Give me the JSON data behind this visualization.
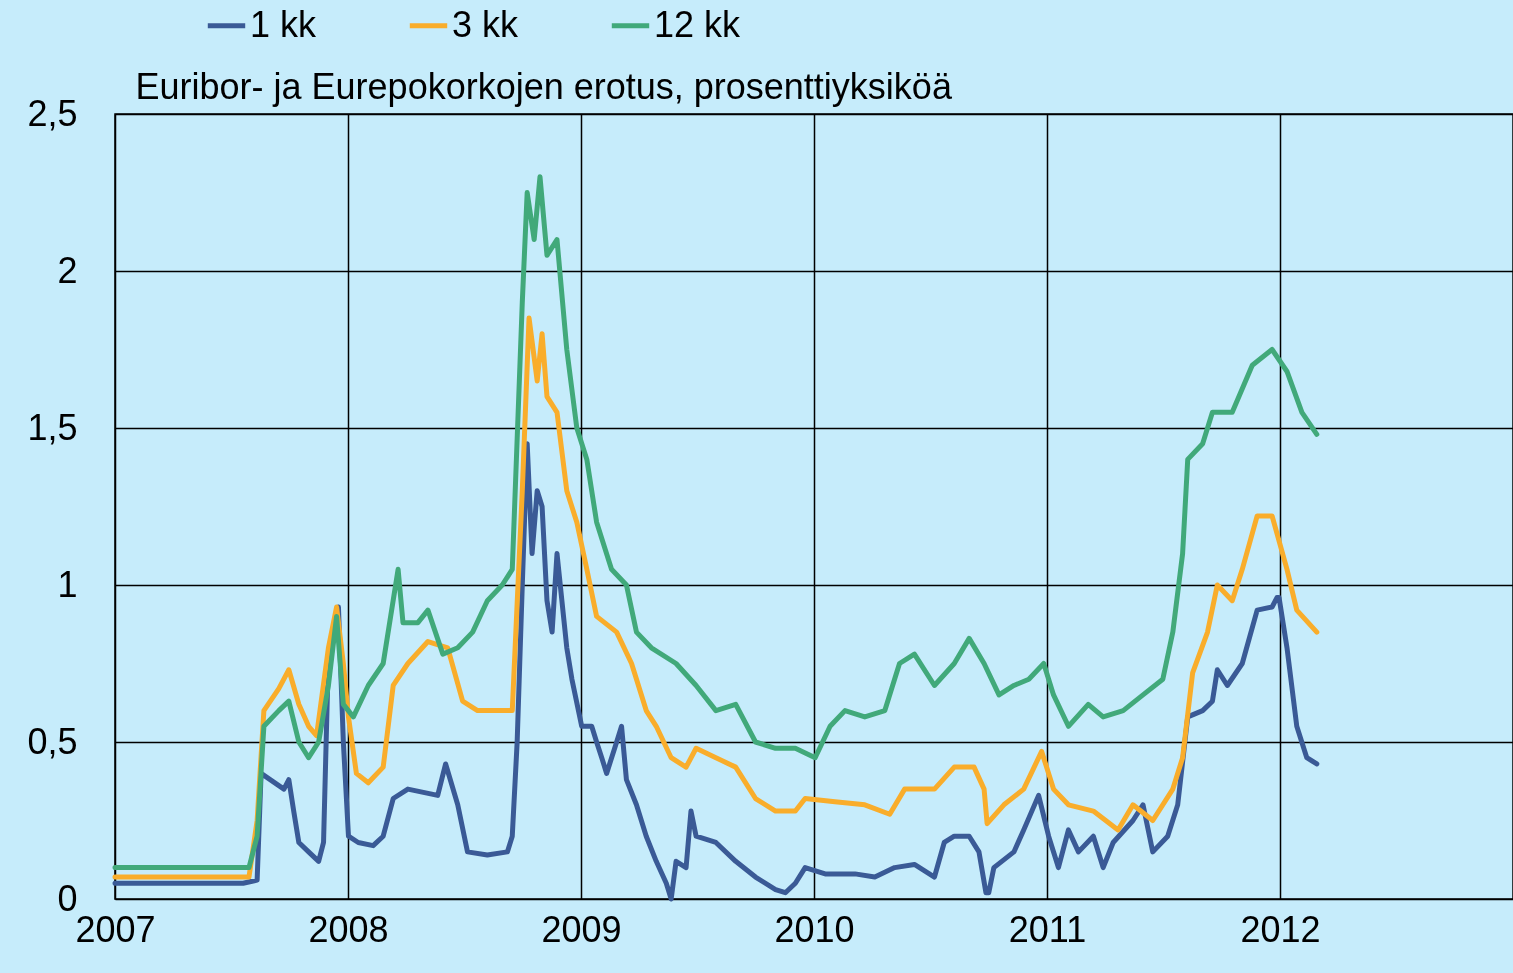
{
  "chart_data": {
    "type": "line",
    "ylabel": "Euribor- ja Eurepokorkojen erotus, prosenttiyksiköä",
    "xlim": [
      2007,
      2013
    ],
    "xticks": [
      2007,
      2008,
      2009,
      2010,
      2011,
      2012
    ],
    "ylim": [
      0,
      2.5
    ],
    "yticks": [
      0,
      {
        "value": 0.5,
        "label": "0,5"
      },
      1,
      {
        "value": 1.5,
        "label": "1,5"
      },
      2,
      {
        "value": 2.5,
        "label": "2,5"
      }
    ],
    "grid": true,
    "legend": "top left",
    "marker": "none",
    "line_style": "solid",
    "series": [
      {
        "name": "1 kk",
        "color": "#3a5a96",
        "x": [
          2007.0,
          2007.448,
          2007.55,
          2007.61,
          2007.627,
          2007.725,
          2007.746,
          2007.767,
          2007.789,
          2007.831,
          2007.874,
          2007.895,
          2007.916,
          2007.959,
          2007.98,
          2008.002,
          2008.044,
          2008.108,
          2008.151,
          2008.194,
          2008.257,
          2008.385,
          2008.419,
          2008.471,
          2008.513,
          2008.598,
          2008.684,
          2008.705,
          2008.726,
          2008.748,
          2008.769,
          2008.79,
          2008.812,
          2008.833,
          2008.854,
          2008.876,
          2008.897,
          2008.918,
          2008.939,
          2008.961,
          2009.003,
          2009.046,
          2009.067,
          2009.089,
          2009.11,
          2009.153,
          2009.174,
          2009.195,
          2009.238,
          2009.28,
          2009.323,
          2009.366,
          2009.387,
          2009.408,
          2009.451,
          2009.472,
          2009.494,
          2009.579,
          2009.664,
          2009.749,
          2009.835,
          2009.877,
          2009.92,
          2009.962,
          2010.048,
          2010.176,
          2010.261,
          2010.346,
          2010.431,
          2010.517,
          2010.559,
          2010.602,
          2010.666,
          2010.708,
          2010.738,
          2010.75,
          2010.772,
          2010.858,
          2010.9,
          2010.964,
          2011.007,
          2011.049,
          2011.092,
          2011.135,
          2011.199,
          2011.241,
          2011.284,
          2011.369,
          2011.412,
          2011.454,
          2011.518,
          2011.561,
          2011.604,
          2011.668,
          2011.71,
          2011.731,
          2011.774,
          2011.838,
          2011.902,
          2011.966,
          2011.987,
          2011.996,
          2012.03,
          2012.072,
          2012.115,
          2012.158
        ],
        "values": [
          0.05,
          0.05,
          0.05,
          0.06,
          0.4,
          0.35,
          0.38,
          0.28,
          0.18,
          0.15,
          0.12,
          0.18,
          0.78,
          0.93,
          0.5,
          0.2,
          0.18,
          0.17,
          0.2,
          0.32,
          0.35,
          0.33,
          0.43,
          0.3,
          0.15,
          0.14,
          0.15,
          0.2,
          0.5,
          1.0,
          1.45,
          1.1,
          1.3,
          1.25,
          0.95,
          0.85,
          1.1,
          0.95,
          0.8,
          0.7,
          0.55,
          0.55,
          0.5,
          0.45,
          0.4,
          0.5,
          0.55,
          0.38,
          0.3,
          0.2,
          0.12,
          0.05,
          0.0,
          0.12,
          0.1,
          0.28,
          0.2,
          0.18,
          0.12,
          0.07,
          0.03,
          0.02,
          0.05,
          0.1,
          0.08,
          0.08,
          0.07,
          0.1,
          0.11,
          0.07,
          0.18,
          0.2,
          0.2,
          0.15,
          0.02,
          0.02,
          0.1,
          0.15,
          0.22,
          0.33,
          0.2,
          0.1,
          0.22,
          0.15,
          0.2,
          0.1,
          0.18,
          0.25,
          0.3,
          0.15,
          0.2,
          0.3,
          0.58,
          0.6,
          0.63,
          0.73,
          0.68,
          0.75,
          0.92,
          0.93,
          0.96,
          0.96,
          0.8,
          0.55,
          0.45,
          0.43
        ]
      },
      {
        "name": "3 kk",
        "color": "#f9ad2b",
        "x": [
          2007.0,
          2007.575,
          2007.61,
          2007.639,
          2007.703,
          2007.746,
          2007.789,
          2007.831,
          2007.865,
          2007.916,
          2007.951,
          2007.98,
          2008.002,
          2008.036,
          2008.087,
          2008.151,
          2008.194,
          2008.257,
          2008.343,
          2008.428,
          2008.492,
          2008.556,
          2008.641,
          2008.705,
          2008.748,
          2008.777,
          2008.812,
          2008.833,
          2008.854,
          2008.897,
          2008.939,
          2008.982,
          2009.025,
          2009.067,
          2009.153,
          2009.217,
          2009.28,
          2009.323,
          2009.387,
          2009.451,
          2009.494,
          2009.579,
          2009.664,
          2009.749,
          2009.835,
          2009.92,
          2009.962,
          2010.09,
          2010.218,
          2010.325,
          2010.389,
          2010.517,
          2010.602,
          2010.687,
          2010.73,
          2010.743,
          2010.815,
          2010.9,
          2010.977,
          2011.028,
          2011.092,
          2011.199,
          2011.305,
          2011.369,
          2011.454,
          2011.54,
          2011.582,
          2011.625,
          2011.689,
          2011.731,
          2011.795,
          2011.838,
          2011.902,
          2011.966,
          2012.03,
          2012.072,
          2012.158
        ],
        "values": [
          0.07,
          0.07,
          0.25,
          0.6,
          0.67,
          0.73,
          0.62,
          0.55,
          0.52,
          0.8,
          0.93,
          0.75,
          0.58,
          0.4,
          0.37,
          0.42,
          0.68,
          0.75,
          0.82,
          0.8,
          0.63,
          0.6,
          0.6,
          0.6,
          1.3,
          1.85,
          1.65,
          1.8,
          1.6,
          1.55,
          1.3,
          1.2,
          1.05,
          0.9,
          0.85,
          0.75,
          0.6,
          0.55,
          0.45,
          0.42,
          0.48,
          0.45,
          0.42,
          0.32,
          0.28,
          0.28,
          0.32,
          0.31,
          0.3,
          0.27,
          0.35,
          0.35,
          0.42,
          0.42,
          0.35,
          0.24,
          0.3,
          0.35,
          0.47,
          0.35,
          0.3,
          0.28,
          0.22,
          0.3,
          0.25,
          0.35,
          0.45,
          0.72,
          0.85,
          1.0,
          0.95,
          1.05,
          1.22,
          1.22,
          1.05,
          0.92,
          0.85
        ]
      },
      {
        "name": "12 kk",
        "color": "#41a97a",
        "x": [
          2007.0,
          2007.575,
          2007.61,
          2007.639,
          2007.703,
          2007.746,
          2007.789,
          2007.831,
          2007.874,
          2007.916,
          2007.951,
          2007.98,
          2008.023,
          2008.087,
          2008.151,
          2008.215,
          2008.236,
          2008.3,
          2008.343,
          2008.407,
          2008.471,
          2008.535,
          2008.598,
          2008.662,
          2008.705,
          2008.748,
          2008.769,
          2008.799,
          2008.824,
          2008.854,
          2008.897,
          2008.939,
          2008.982,
          2009.025,
          2009.067,
          2009.131,
          2009.195,
          2009.238,
          2009.302,
          2009.408,
          2009.494,
          2009.579,
          2009.664,
          2009.749,
          2009.835,
          2009.92,
          2010.005,
          2010.069,
          2010.133,
          2010.218,
          2010.304,
          2010.367,
          2010.431,
          2010.517,
          2010.602,
          2010.666,
          2010.73,
          2010.794,
          2010.858,
          2010.922,
          2010.986,
          2011.028,
          2011.092,
          2011.177,
          2011.241,
          2011.327,
          2011.412,
          2011.497,
          2011.54,
          2011.582,
          2011.604,
          2011.668,
          2011.71,
          2011.795,
          2011.881,
          2011.966,
          2012.03,
          2012.094,
          2012.158
        ],
        "values": [
          0.1,
          0.1,
          0.2,
          0.55,
          0.6,
          0.63,
          0.5,
          0.45,
          0.5,
          0.68,
          0.9,
          0.62,
          0.58,
          0.68,
          0.75,
          1.05,
          0.88,
          0.88,
          0.92,
          0.78,
          0.8,
          0.85,
          0.95,
          1.0,
          1.05,
          1.9,
          2.25,
          2.1,
          2.3,
          2.05,
          2.1,
          1.75,
          1.5,
          1.4,
          1.2,
          1.05,
          1.0,
          0.85,
          0.8,
          0.75,
          0.68,
          0.6,
          0.62,
          0.5,
          0.48,
          0.48,
          0.45,
          0.55,
          0.6,
          0.58,
          0.6,
          0.75,
          0.78,
          0.68,
          0.75,
          0.83,
          0.75,
          0.65,
          0.68,
          0.7,
          0.75,
          0.65,
          0.55,
          0.62,
          0.58,
          0.6,
          0.65,
          0.7,
          0.85,
          1.1,
          1.4,
          1.45,
          1.55,
          1.55,
          1.7,
          1.75,
          1.68,
          1.55,
          1.48
        ]
      }
    ]
  }
}
